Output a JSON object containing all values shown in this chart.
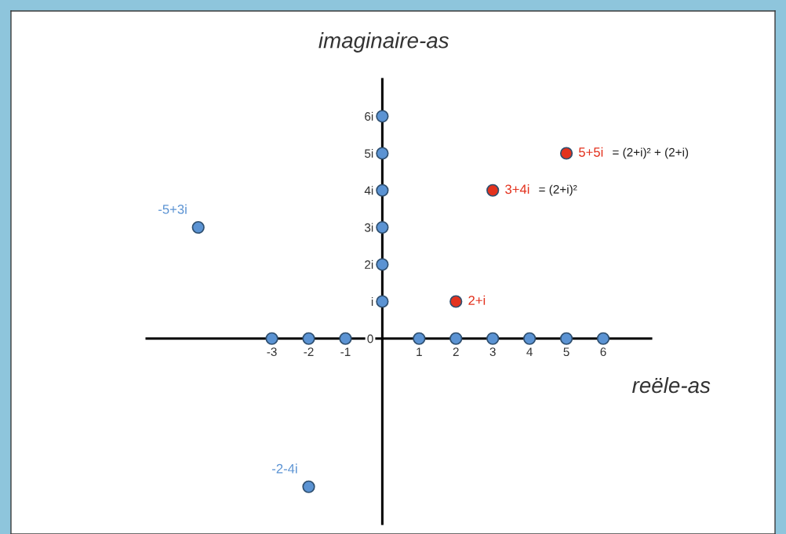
{
  "chart_data": {
    "type": "scatter",
    "xlabel": "reële-as",
    "ylabel": "imaginaire-as",
    "xlim": [
      -6.4,
      7.3
    ],
    "ylim": [
      -5,
      7
    ],
    "xticks": [
      -3,
      -2,
      -1,
      1,
      2,
      3,
      4,
      5,
      6
    ],
    "yticks": [
      {
        "value": 0,
        "label": "0"
      },
      {
        "value": 1,
        "label": "i"
      },
      {
        "value": 2,
        "label": "2i"
      },
      {
        "value": 3,
        "label": "3i"
      },
      {
        "value": 4,
        "label": "4i"
      },
      {
        "value": 5,
        "label": "5i"
      },
      {
        "value": 6,
        "label": "6i"
      }
    ],
    "marker": "circle",
    "series": [
      {
        "color": "#5b93d3",
        "x": [
          -3,
          -2,
          -1,
          1,
          2,
          3,
          4,
          5,
          6,
          0,
          0,
          0,
          0,
          0,
          0
        ],
        "values": [
          0,
          0,
          0,
          0,
          0,
          0,
          0,
          0,
          0,
          1,
          2,
          3,
          4,
          5,
          6
        ]
      },
      {
        "color": "#5b93d3",
        "x": [
          -5,
          -2
        ],
        "values": [
          3,
          -4
        ]
      },
      {
        "color": "#e3321e",
        "x": [
          2,
          3,
          5
        ],
        "values": [
          1,
          4,
          5
        ]
      }
    ],
    "annotations": [
      {
        "text": "-5+3i",
        "x": -5,
        "y": 3
      },
      {
        "text": "-2-4i",
        "x": -2,
        "y": -4
      },
      {
        "text": "2+i",
        "x": 2,
        "y": 1
      },
      {
        "text": "3+4i",
        "x": 3,
        "y": 4
      },
      "= (2+i)²",
      {
        "text": "5+5i",
        "x": 5,
        "y": 5
      },
      "= (2+i)² + (2+i)"
    ]
  }
}
